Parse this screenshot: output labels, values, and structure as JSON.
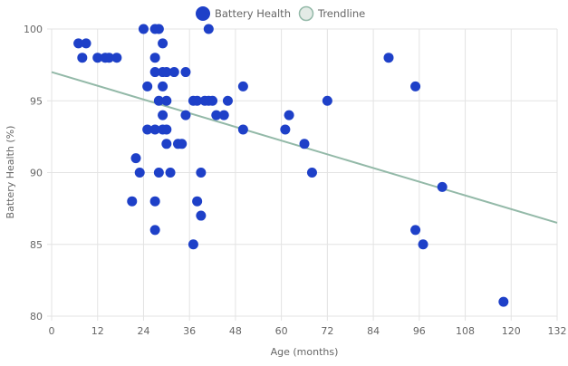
{
  "chart_data": {
    "type": "scatter",
    "title": "",
    "xlabel": "Age (months)",
    "ylabel": "Battery Health (%)",
    "xlim": [
      0,
      132
    ],
    "ylim": [
      80,
      100
    ],
    "xticks": [
      0,
      12,
      24,
      36,
      48,
      60,
      72,
      84,
      96,
      108,
      120,
      132
    ],
    "yticks": [
      80,
      85,
      90,
      95,
      100
    ],
    "grid": true,
    "legend_position": "top",
    "series": [
      {
        "name": "Battery Health",
        "color": "#1e40c8",
        "points": [
          [
            7,
            99
          ],
          [
            9,
            99
          ],
          [
            29,
            99
          ],
          [
            8,
            98
          ],
          [
            12,
            98
          ],
          [
            14,
            98
          ],
          [
            15,
            98
          ],
          [
            17,
            98
          ],
          [
            27,
            98
          ],
          [
            88,
            98
          ],
          [
            24,
            100
          ],
          [
            27,
            100
          ],
          [
            28,
            100
          ],
          [
            41,
            100
          ],
          [
            27,
            97
          ],
          [
            29,
            97
          ],
          [
            30,
            97
          ],
          [
            32,
            97
          ],
          [
            35,
            97
          ],
          [
            25,
            96
          ],
          [
            29,
            96
          ],
          [
            50,
            96
          ],
          [
            95,
            96
          ],
          [
            28,
            95
          ],
          [
            30,
            95
          ],
          [
            37,
            95
          ],
          [
            38,
            95
          ],
          [
            40,
            95
          ],
          [
            41,
            95
          ],
          [
            42,
            95
          ],
          [
            46,
            95
          ],
          [
            72,
            95
          ],
          [
            29,
            94
          ],
          [
            35,
            94
          ],
          [
            43,
            94
          ],
          [
            45,
            94
          ],
          [
            62,
            94
          ],
          [
            25,
            93
          ],
          [
            27,
            93
          ],
          [
            29,
            93
          ],
          [
            30,
            93
          ],
          [
            50,
            93
          ],
          [
            61,
            93
          ],
          [
            30,
            92
          ],
          [
            33,
            92
          ],
          [
            34,
            92
          ],
          [
            66,
            92
          ],
          [
            22,
            91
          ],
          [
            23,
            90
          ],
          [
            28,
            90
          ],
          [
            31,
            90
          ],
          [
            39,
            90
          ],
          [
            68,
            90
          ],
          [
            102,
            89
          ],
          [
            21,
            88
          ],
          [
            27,
            88
          ],
          [
            38,
            88
          ],
          [
            39,
            87
          ],
          [
            27,
            86
          ],
          [
            95,
            86
          ],
          [
            37,
            85
          ],
          [
            97,
            85
          ],
          [
            118,
            81
          ]
        ]
      },
      {
        "name": "Trendline",
        "color": "#93b9a8",
        "type": "line",
        "points": [
          [
            0,
            97.0
          ],
          [
            132,
            86.5
          ]
        ]
      }
    ]
  }
}
